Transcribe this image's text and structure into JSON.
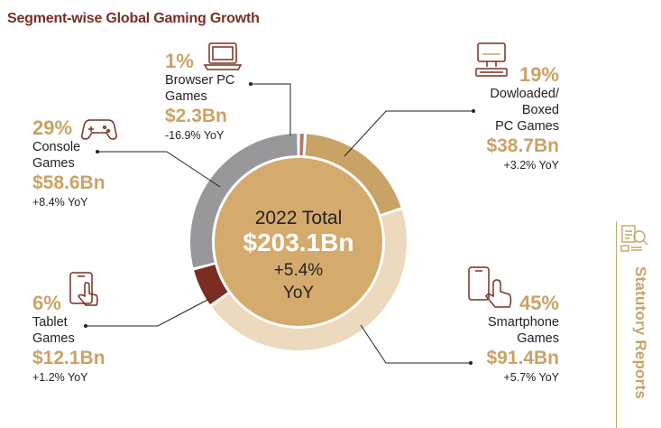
{
  "title": "Segment-wise Global Gaming Growth",
  "sidebar": {
    "label": "Statutory Reports"
  },
  "colors": {
    "accent": "#c9a266",
    "title": "#7a2e21"
  },
  "center": {
    "line1": "2022 Total",
    "line2": "$203.1Bn",
    "line3": "+5.4%",
    "line4": "YoY"
  },
  "segments": [
    {
      "pct": "1%",
      "name1": "Browser PC",
      "name2": "Games",
      "amount": "$2.3Bn",
      "yoy": "-16.9% YoY",
      "icon": "laptop-icon"
    },
    {
      "pct": "19%",
      "name1": "Dowloaded/",
      "name2": "Boxed",
      "name3": "PC Games",
      "amount": "$38.7Bn",
      "yoy": "+3.2% YoY",
      "icon": "desktop-icon"
    },
    {
      "pct": "45%",
      "name1": "Smartphone",
      "name2": "Games",
      "amount": "$91.4Bn",
      "yoy": "+5.7% YoY",
      "icon": "smartphone-touch-icon"
    },
    {
      "pct": "6%",
      "name1": "Tablet",
      "name2": "Games",
      "amount": "$12.1Bn",
      "yoy": "+1.2% YoY",
      "icon": "tablet-touch-icon"
    },
    {
      "pct": "29%",
      "name1": "Console",
      "name2": "Games",
      "amount": "$58.6Bn",
      "yoy": "+8.4% YoY",
      "icon": "gamepad-icon"
    }
  ],
  "chart_data": {
    "type": "pie",
    "style": "donut",
    "title": "Segment-wise Global Gaming Growth",
    "total_label": "2022 Total $203.1Bn +5.4% YoY",
    "categories": [
      "Browser PC Games",
      "Dowloaded/Boxed PC Games",
      "Smartphone Games",
      "Tablet Games",
      "Console Games"
    ],
    "values": [
      1,
      19,
      45,
      6,
      29
    ],
    "amounts_bn": [
      2.3,
      38.7,
      91.4,
      12.1,
      58.6
    ],
    "yoy_pct": [
      -16.9,
      3.2,
      5.7,
      1.2,
      8.4
    ],
    "colors": [
      "#b07a6a",
      "#c9a266",
      "#ecd9be",
      "#7a2e21",
      "#98989a"
    ]
  }
}
